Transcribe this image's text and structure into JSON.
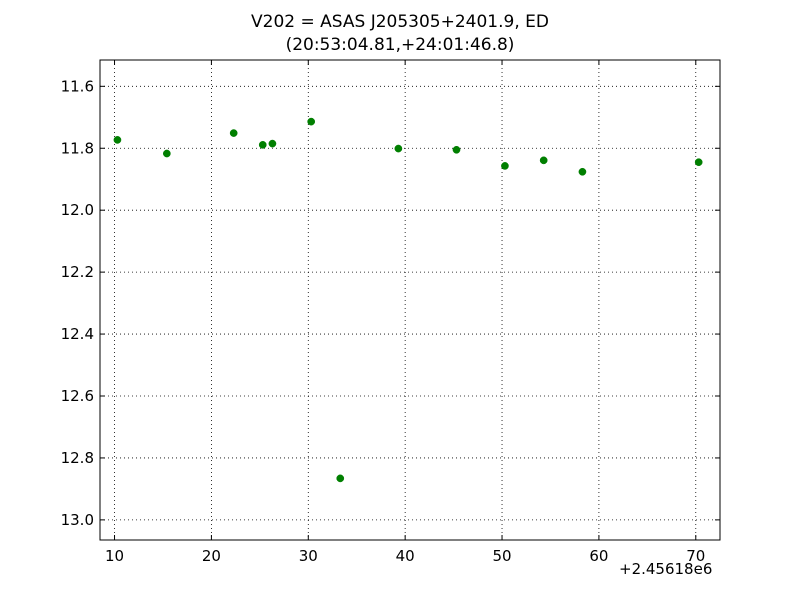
{
  "chart_data": {
    "type": "scatter",
    "title": "V202 = ASAS J205305+2401.9, ED",
    "subtitle": "(20:53:04.81,+24:01:46.8)",
    "xlabel": "",
    "ylabel": "",
    "x_offset_label": "+2.45618e6",
    "xlim": [
      8.5,
      72.5
    ],
    "ylim": [
      13.065,
      11.515
    ],
    "y_inverted": true,
    "xticks": [
      10,
      20,
      30,
      40,
      50,
      60,
      70
    ],
    "xtick_labels": [
      "10",
      "20",
      "30",
      "40",
      "50",
      "60",
      "70"
    ],
    "yticks": [
      11.6,
      11.8,
      12.0,
      12.2,
      12.4,
      12.6,
      12.8,
      13.0
    ],
    "ytick_labels": [
      "11.6",
      "11.8",
      "12.0",
      "12.2",
      "12.4",
      "12.6",
      "12.8",
      "13.0"
    ],
    "grid": true,
    "marker_color": "#007f00",
    "series": [
      {
        "x": [
          10.3,
          15.4,
          22.3,
          25.3,
          26.3,
          30.3,
          33.3,
          39.3,
          45.3,
          50.3,
          54.3,
          58.3,
          70.3
        ],
        "y": [
          11.773,
          11.817,
          11.751,
          11.789,
          11.785,
          11.714,
          12.866,
          11.801,
          11.805,
          11.857,
          11.839,
          11.876,
          11.845
        ]
      }
    ]
  }
}
